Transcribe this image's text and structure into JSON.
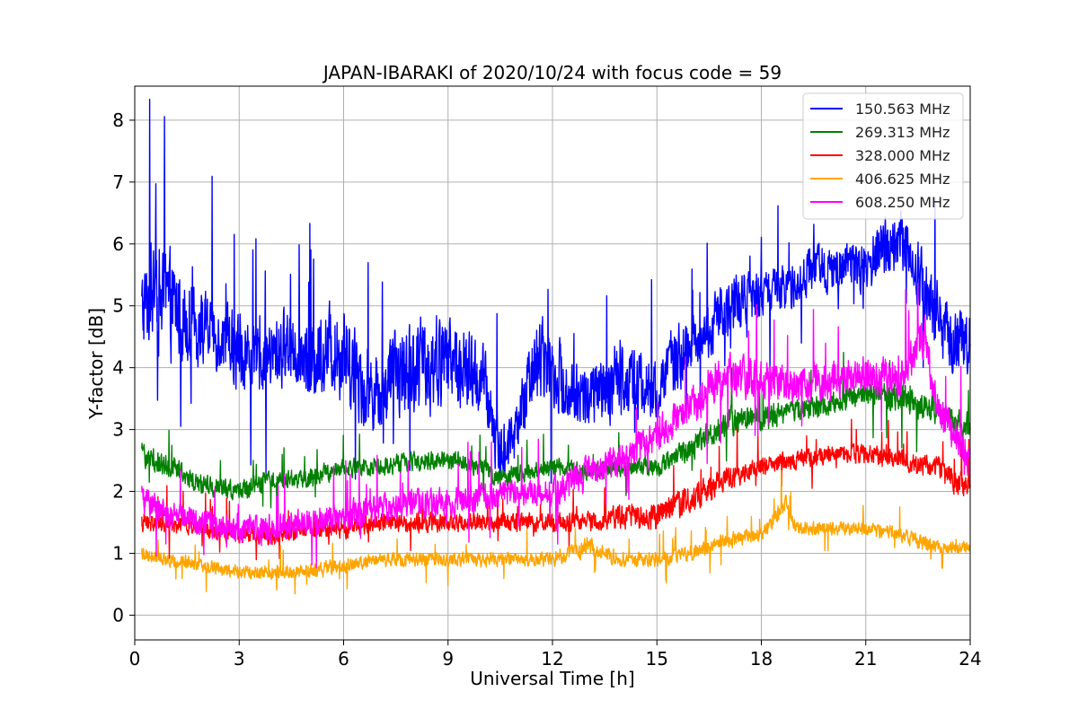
{
  "chart_data": {
    "type": "line",
    "title": "JAPAN-IBARAKI of 2020/10/24 with focus code = 59",
    "xlabel": "Universal Time [h]",
    "ylabel": "Y-factor [dB]",
    "xlim": [
      0,
      24
    ],
    "ylim": [
      -0.4,
      8.55
    ],
    "xticks": [
      0,
      3,
      6,
      9,
      12,
      15,
      18,
      21,
      24
    ],
    "yticks": [
      0,
      1,
      2,
      3,
      4,
      5,
      6,
      7,
      8
    ],
    "grid": true,
    "legend_position": "top-right",
    "series": [
      {
        "name": "150.563 MHz",
        "color": "#0000ff",
        "x": [
          0.2,
          0.5,
          1,
          1.5,
          2,
          2.5,
          3,
          3.5,
          4,
          4.5,
          5,
          5.5,
          6,
          6.5,
          7,
          7.5,
          8,
          8.5,
          9,
          9.5,
          10,
          10.5,
          11,
          11.5,
          12,
          12.5,
          13,
          13.5,
          14,
          14.5,
          15,
          15.5,
          16,
          16.5,
          17,
          17.5,
          18,
          18.5,
          19,
          19.5,
          20,
          20.5,
          21,
          21.5,
          22,
          22.5,
          23,
          23.5,
          24
        ],
        "y": [
          4.9,
          5.2,
          5.0,
          4.8,
          4.6,
          4.5,
          4.3,
          4.1,
          4.2,
          4.4,
          4.1,
          4.3,
          4.3,
          3.8,
          3.6,
          3.9,
          4.0,
          4.1,
          4.2,
          3.9,
          3.8,
          2.6,
          3.0,
          4.2,
          4.0,
          3.6,
          3.5,
          3.6,
          3.9,
          3.7,
          3.6,
          4.1,
          4.4,
          4.6,
          5.0,
          5.1,
          5.2,
          5.2,
          5.4,
          5.6,
          5.6,
          5.7,
          5.6,
          5.9,
          6.1,
          5.5,
          4.9,
          4.4,
          4.5
        ],
        "noise": [
          0.9,
          1.1,
          1.1,
          0.9,
          0.8,
          0.7,
          0.9,
          0.7,
          0.8,
          0.8,
          0.9,
          0.9,
          1.0,
          0.9,
          0.8,
          0.9,
          0.9,
          1.1,
          0.9,
          0.9,
          0.8,
          0.7,
          0.6,
          1.0,
          0.8,
          0.7,
          0.7,
          0.8,
          0.8,
          0.7,
          0.6,
          0.7,
          0.6,
          0.6,
          0.6,
          0.6,
          0.5,
          0.5,
          0.5,
          0.5,
          0.5,
          0.5,
          0.6,
          0.7,
          0.7,
          0.7,
          0.7,
          0.7,
          0.7
        ]
      },
      {
        "name": "269.313 MHz",
        "color": "#008000",
        "x": [
          0.2,
          1,
          2,
          3,
          4,
          5,
          6,
          7,
          8,
          9,
          10,
          10.5,
          11,
          12,
          13,
          14,
          15,
          16,
          17,
          17.5,
          18,
          19,
          20,
          21,
          22,
          23,
          24
        ],
        "y": [
          2.6,
          2.4,
          2.1,
          2.0,
          2.2,
          2.2,
          2.4,
          2.4,
          2.5,
          2.5,
          2.4,
          2.2,
          2.3,
          2.4,
          2.3,
          2.4,
          2.4,
          2.7,
          3.1,
          3.2,
          3.2,
          3.3,
          3.4,
          3.6,
          3.5,
          3.3,
          3.0
        ],
        "noise": [
          0.25,
          0.25,
          0.2,
          0.2,
          0.2,
          0.2,
          0.2,
          0.2,
          0.2,
          0.2,
          0.2,
          0.2,
          0.2,
          0.2,
          0.2,
          0.2,
          0.2,
          0.25,
          0.3,
          0.3,
          0.3,
          0.25,
          0.25,
          0.25,
          0.3,
          0.3,
          0.3
        ]
      },
      {
        "name": "328.000 MHz",
        "color": "#ff0000",
        "x": [
          0.2,
          1,
          2,
          3,
          4,
          5,
          6,
          7,
          8,
          9,
          10,
          11,
          12,
          13,
          14,
          15,
          16,
          17,
          18,
          19,
          20,
          21,
          22,
          23,
          24
        ],
        "y": [
          1.5,
          1.5,
          1.4,
          1.3,
          1.3,
          1.4,
          1.4,
          1.5,
          1.5,
          1.5,
          1.5,
          1.5,
          1.5,
          1.5,
          1.6,
          1.6,
          1.9,
          2.2,
          2.4,
          2.5,
          2.6,
          2.6,
          2.5,
          2.4,
          2.0
        ],
        "noise": [
          0.2,
          0.2,
          0.2,
          0.2,
          0.2,
          0.2,
          0.2,
          0.2,
          0.2,
          0.2,
          0.2,
          0.2,
          0.2,
          0.2,
          0.25,
          0.3,
          0.3,
          0.25,
          0.2,
          0.2,
          0.2,
          0.2,
          0.2,
          0.25,
          0.25
        ]
      },
      {
        "name": "406.625 MHz",
        "color": "#ffa500",
        "x": [
          0.2,
          1,
          2,
          3,
          4,
          5,
          6,
          7,
          8,
          9,
          10,
          11,
          12,
          13,
          14,
          15,
          16,
          17,
          18,
          18.7,
          19,
          20,
          21,
          22,
          23,
          24
        ],
        "y": [
          1.0,
          0.9,
          0.8,
          0.7,
          0.7,
          0.7,
          0.8,
          0.9,
          0.9,
          0.9,
          0.9,
          0.9,
          0.9,
          1.1,
          0.9,
          0.9,
          1.0,
          1.2,
          1.3,
          1.8,
          1.4,
          1.4,
          1.4,
          1.3,
          1.1,
          1.1
        ],
        "noise": [
          0.15,
          0.15,
          0.15,
          0.15,
          0.15,
          0.15,
          0.15,
          0.15,
          0.15,
          0.15,
          0.15,
          0.15,
          0.15,
          0.2,
          0.15,
          0.15,
          0.15,
          0.15,
          0.15,
          0.2,
          0.15,
          0.15,
          0.15,
          0.15,
          0.15,
          0.15
        ]
      },
      {
        "name": "608.250 MHz",
        "color": "#ff00ff",
        "x": [
          0.2,
          1,
          2,
          3,
          4,
          5,
          6,
          7,
          8,
          9,
          10,
          11,
          12,
          13,
          14,
          15,
          16,
          17,
          18,
          19,
          20,
          21,
          22,
          22.7,
          23,
          24
        ],
        "y": [
          1.9,
          1.6,
          1.5,
          1.4,
          1.4,
          1.5,
          1.6,
          1.7,
          1.8,
          1.8,
          1.9,
          2.0,
          2.0,
          2.3,
          2.5,
          2.9,
          3.4,
          3.9,
          3.8,
          3.7,
          3.8,
          3.9,
          3.8,
          4.6,
          3.4,
          2.5
        ],
        "noise": [
          0.3,
          0.3,
          0.3,
          0.3,
          0.3,
          0.3,
          0.3,
          0.3,
          0.3,
          0.3,
          0.3,
          0.3,
          0.3,
          0.35,
          0.35,
          0.35,
          0.4,
          0.45,
          0.4,
          0.4,
          0.4,
          0.4,
          0.4,
          0.5,
          0.4,
          0.4
        ]
      }
    ]
  }
}
